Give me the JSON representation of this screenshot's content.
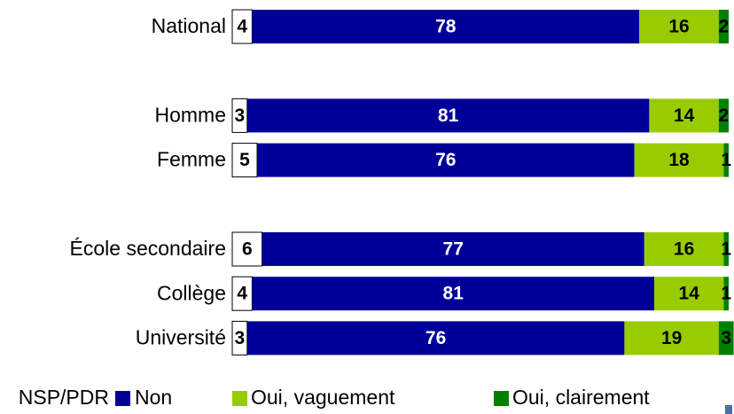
{
  "chart_data": {
    "type": "stacked-barh",
    "categories": [
      "National",
      null,
      "Homme",
      "Femme",
      null,
      "École secondaire",
      "Collège",
      "Université"
    ],
    "series": [
      {
        "name": "NSP/PDR",
        "color": "#ffffff",
        "values": [
          4,
          null,
          3,
          5,
          null,
          6,
          4,
          3
        ]
      },
      {
        "name": "Non",
        "color": "#000099",
        "values": [
          78,
          null,
          81,
          76,
          null,
          77,
          81,
          76
        ]
      },
      {
        "name": "Oui, vaguement",
        "color": "#99cc00",
        "values": [
          16,
          null,
          14,
          18,
          null,
          16,
          14,
          19
        ]
      },
      {
        "name": "Oui, clairement",
        "color": "#008000",
        "values": [
          2,
          null,
          2,
          1,
          null,
          1,
          1,
          3
        ]
      }
    ]
  }
}
